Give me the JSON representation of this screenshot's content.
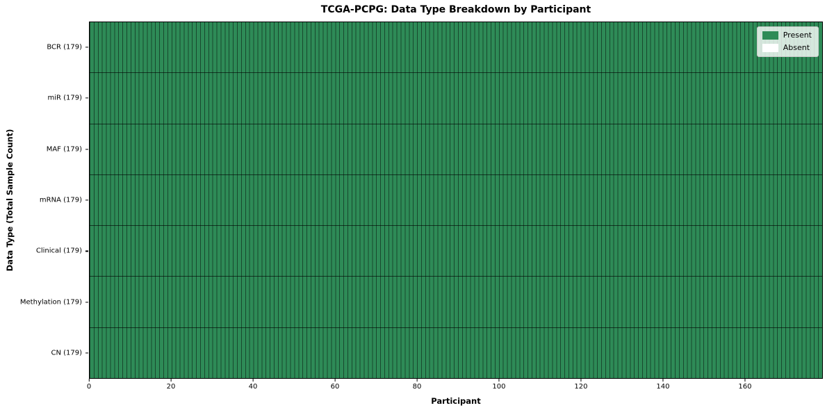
{
  "figure": {
    "title": "TCGA-PCPG: Data Type Breakdown by Participant",
    "xlabel": "Participant",
    "ylabel": "Data Type (Total Sample Count)"
  },
  "colors": {
    "present": "#2e8b57",
    "absent": "#ffffff",
    "cell_border": "#224e38",
    "row_separator": "#1c3a2a",
    "legend_border": "#c9c9c9",
    "plot_border": "#000000"
  },
  "legend": {
    "items": [
      {
        "label": "Present",
        "color": "#2e8b57"
      },
      {
        "label": "Absent",
        "color": "#ffffff"
      }
    ],
    "position": "upper right"
  },
  "chart_data": {
    "type": "heatmap",
    "title": "TCGA-PCPG: Data Type Breakdown by Participant",
    "xlabel": "Participant",
    "ylabel": "Data Type (Total Sample Count)",
    "xlim": [
      0,
      179
    ],
    "x_ticks": [
      0,
      20,
      40,
      60,
      80,
      100,
      120,
      140,
      160
    ],
    "n_participants": 179,
    "grid": "per-cell borders, rows separated by dark lines",
    "legend_position": "upper right",
    "categories": [
      "BCR (179)",
      "miR (179)",
      "MAF (179)",
      "mRNA (179)",
      "Clinical (179)",
      "Methylation (179)",
      "CN (179)"
    ],
    "rows": [
      {
        "label": "BCR (179)",
        "data_type": "BCR",
        "total_samples": 179,
        "present_count": 179,
        "absent_count": 0
      },
      {
        "label": "miR (179)",
        "data_type": "miR",
        "total_samples": 179,
        "present_count": 179,
        "absent_count": 0
      },
      {
        "label": "MAF (179)",
        "data_type": "MAF",
        "total_samples": 179,
        "present_count": 179,
        "absent_count": 0
      },
      {
        "label": "mRNA (179)",
        "data_type": "mRNA",
        "total_samples": 179,
        "present_count": 179,
        "absent_count": 0
      },
      {
        "label": "Clinical (179)",
        "data_type": "Clinical",
        "total_samples": 179,
        "present_count": 179,
        "absent_count": 0
      },
      {
        "label": "Methylation (179)",
        "data_type": "Methylation",
        "total_samples": 179,
        "present_count": 179,
        "absent_count": 0
      },
      {
        "label": "CN (179)",
        "data_type": "CN",
        "total_samples": 179,
        "present_count": 179,
        "absent_count": 0
      }
    ],
    "legend": [
      {
        "label": "Present",
        "color": "#2e8b57"
      },
      {
        "label": "Absent",
        "color": "#ffffff"
      }
    ]
  }
}
